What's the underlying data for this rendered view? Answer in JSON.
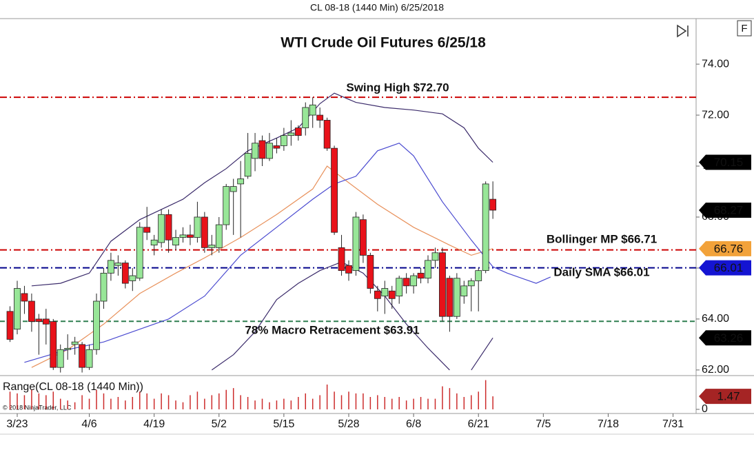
{
  "chart_data": {
    "type": "candlestick",
    "caption": "CL 08-18 (1440 Min)  6/25/2018",
    "title": "WTI Crude Oil Futures 6/25/18",
    "corner_button": "F",
    "copyright": "© 2018 NinjaTrader, LLC",
    "up_color": "#98e698",
    "down_color": "#e8121a",
    "x": [
      -1,
      0,
      1,
      2,
      3,
      4,
      5,
      6,
      7,
      8,
      9,
      10,
      11,
      12,
      13,
      14,
      15,
      16,
      17,
      18,
      19,
      20,
      21,
      22,
      23,
      24,
      25,
      26,
      27,
      28,
      29,
      30,
      31,
      32,
      33,
      34,
      35,
      36,
      37,
      38,
      39,
      40,
      41,
      42,
      43,
      44,
      45,
      46,
      47,
      48,
      49,
      50,
      51,
      52,
      53,
      54,
      55,
      56,
      57,
      58,
      59,
      60,
      61,
      62,
      63,
      64,
      65,
      66
    ],
    "open": [
      64.3,
      63.6,
      65.0,
      64.7,
      64.0,
      64.0,
      63.9,
      62.1,
      62.8,
      63.0,
      63.0,
      62.1,
      62.8,
      64.7,
      65.8,
      66.1,
      66.2,
      65.5,
      65.6,
      67.6,
      66.9,
      67.0,
      68.1,
      66.9,
      67.2,
      67.3,
      67.2,
      68.0,
      66.8,
      66.8,
      67.7,
      69.0,
      69.3,
      69.6,
      70.3,
      71.0,
      70.3,
      70.8,
      70.8,
      71.2,
      71.5,
      71.5,
      72.0,
      72.0,
      71.8,
      70.7,
      66.8,
      66.1,
      65.9,
      67.9,
      66.5,
      65.1,
      64.9,
      65.1,
      64.9,
      65.6,
      65.3,
      65.8,
      65.6,
      66.3,
      66.6,
      65.6,
      64.1,
      64.9,
      65.3,
      65.5,
      65.9,
      68.7
    ],
    "high": [
      64.5,
      65.5,
      65.3,
      65.0,
      64.2,
      64.4,
      64.0,
      63.0,
      63.4,
      63.3,
      63.1,
      63.0,
      65.0,
      66.0,
      66.6,
      66.5,
      66.3,
      66.0,
      67.8,
      68.4,
      67.3,
      68.3,
      68.3,
      67.5,
      67.6,
      67.7,
      68.6,
      68.2,
      67.3,
      68.0,
      69.3,
      69.5,
      70.2,
      71.3,
      71.3,
      71.2,
      71.3,
      71.1,
      71.5,
      71.8,
      71.6,
      72.5,
      72.7,
      72.3,
      71.9,
      70.8,
      67.3,
      66.3,
      68.2,
      68.1,
      66.6,
      65.3,
      65.5,
      65.3,
      65.7,
      65.8,
      65.8,
      66.0,
      66.5,
      66.8,
      66.8,
      65.7,
      65.8,
      65.5,
      65.6,
      66.0,
      69.4,
      69.4
    ],
    "low": [
      63.1,
      63.4,
      64.2,
      63.5,
      62.6,
      63.0,
      62.0,
      61.9,
      62.4,
      62.6,
      61.9,
      62.0,
      62.6,
      64.4,
      65.5,
      65.7,
      65.2,
      65.1,
      65.5,
      67.1,
      66.5,
      66.8,
      66.6,
      66.7,
      67.0,
      66.9,
      67.0,
      66.6,
      66.5,
      66.6,
      67.5,
      67.3,
      67.2,
      69.5,
      69.8,
      70.0,
      70.2,
      70.5,
      70.6,
      70.8,
      71.0,
      71.2,
      71.5,
      71.5,
      70.6,
      67.3,
      65.7,
      65.5,
      65.7,
      66.2,
      65.0,
      64.3,
      64.2,
      64.4,
      64.6,
      65.0,
      65.0,
      65.4,
      65.4,
      66.0,
      63.9,
      63.5,
      64.0,
      64.6,
      64.3,
      64.3,
      65.8,
      67.93
    ],
    "close": [
      63.2,
      65.2,
      64.7,
      63.9,
      63.9,
      63.8,
      62.1,
      62.8,
      62.85,
      63.1,
      62.1,
      62.8,
      64.7,
      65.8,
      66.3,
      66.2,
      65.4,
      65.7,
      67.6,
      67.4,
      67.1,
      68.1,
      67.1,
      67.2,
      67.3,
      67.2,
      68.0,
      66.8,
      66.9,
      67.7,
      69.2,
      69.2,
      69.5,
      70.5,
      70.9,
      70.3,
      70.9,
      70.7,
      71.2,
      71.3,
      71.2,
      72.3,
      72.4,
      71.8,
      70.7,
      67.4,
      65.9,
      65.8,
      68.0,
      66.5,
      65.2,
      64.8,
      65.2,
      64.8,
      65.6,
      65.3,
      65.7,
      65.6,
      66.3,
      66.6,
      64.1,
      64.1,
      65.6,
      65.3,
      65.5,
      65.9,
      69.3,
      68.27
    ],
    "xlim": [
      -2.39,
      94.2
    ],
    "ylim": [
      61.78,
      75.76
    ],
    "xticks": [
      {
        "value": 0,
        "label": "3/23"
      },
      {
        "value": 10,
        "label": "4/6"
      },
      {
        "value": 19,
        "label": "4/19"
      },
      {
        "value": 28,
        "label": "5/2"
      },
      {
        "value": 37,
        "label": "5/15"
      },
      {
        "value": 46,
        "label": "5/28"
      },
      {
        "value": 55,
        "label": "6/8"
      },
      {
        "value": 64,
        "label": "6/21"
      },
      {
        "value": 73,
        "label": "7/5"
      },
      {
        "value": 82,
        "label": "7/18"
      },
      {
        "value": 91,
        "label": "7/31"
      }
    ],
    "yticks": [
      {
        "value": 62,
        "label": "62.00"
      },
      {
        "value": 64,
        "label": "64.00"
      },
      {
        "value": 66,
        "label": "66.00"
      },
      {
        "value": 68,
        "label": "68.00"
      },
      {
        "value": 70,
        "label": "70.00"
      },
      {
        "value": 72,
        "label": "72.00"
      },
      {
        "value": 74,
        "label": "74.00"
      }
    ],
    "lines": [
      {
        "color": "#3a2a6a",
        "x": [
          2,
          6,
          10,
          13,
          17,
          20,
          23,
          26,
          29,
          32,
          36,
          39,
          42,
          44,
          47,
          51,
          55,
          59,
          62,
          64,
          66
        ],
        "values": [
          65.3,
          65.4,
          65.8,
          67.05,
          67.9,
          68.3,
          68.7,
          69.35,
          69.9,
          70.6,
          71.1,
          71.5,
          72.45,
          72.86,
          72.5,
          72.3,
          72.2,
          72.05,
          71.5,
          70.7,
          70.15
        ]
      },
      {
        "color": "#3a2a6a",
        "x": [
          27,
          30,
          33,
          36,
          39,
          42,
          45,
          48,
          51,
          54,
          57,
          60,
          61,
          63,
          66
        ],
        "values": [
          62.0,
          62.6,
          63.5,
          64.76,
          65.4,
          65.9,
          66.24,
          65.8,
          64.9,
          63.8,
          62.86,
          62.0,
          null,
          62.0,
          63.26
        ]
      },
      {
        "color": "#e8905a",
        "x": [
          2,
          7,
          12,
          17,
          22,
          26,
          31,
          36,
          41,
          43,
          46,
          50,
          55,
          60,
          63,
          66
        ],
        "values": [
          62.1,
          62.8,
          63.8,
          65.0,
          65.8,
          66.4,
          67.2,
          68.1,
          69.1,
          70.0,
          69.35,
          68.5,
          67.6,
          66.9,
          66.5,
          66.76
        ]
      },
      {
        "color": "#4a4ad0",
        "x": [
          1,
          7,
          12,
          17,
          21,
          26,
          31,
          36,
          41,
          44,
          47,
          50,
          53,
          55,
          59,
          63,
          66,
          68,
          72,
          74
        ],
        "values": [
          62.3,
          62.8,
          63.1,
          63.6,
          64.0,
          64.9,
          66.5,
          67.6,
          68.7,
          69.3,
          69.6,
          70.6,
          70.9,
          70.4,
          68.6,
          67.1,
          66.05,
          65.8,
          65.4,
          65.65
        ]
      }
    ],
    "hlines": [
      {
        "value": 72.7,
        "color": "#cc0000",
        "label": "Swing High $72.70"
      },
      {
        "value": 66.71,
        "color": "#cc0000",
        "label": "Bollinger MP $66.71"
      },
      {
        "value": 66.01,
        "color": "#00008b",
        "label": "Daily SMA $66.01"
      },
      {
        "value": 63.91,
        "color": "#2e7d4f",
        "label": "78% Macro Retracement $63.91"
      }
    ],
    "range": {
      "title": "Range(CL 08-18 (1440 Min))",
      "color": "#cc2a2a",
      "values": [
        2.0,
        1.8,
        1.6,
        2.2,
        1.8,
        1.6,
        2.0,
        1.2,
        1.0,
        0.8,
        1.6,
        1.2,
        2.2,
        1.8,
        1.2,
        1.4,
        1.0,
        1.4,
        2.0,
        1.8,
        1.2,
        1.8,
        1.6,
        1.0,
        0.8,
        1.6,
        2.0,
        1.2,
        1.6,
        1.8,
        2.2,
        2.4,
        1.6,
        1.4,
        1.0,
        1.2,
        0.8,
        1.0,
        1.2,
        1.0,
        1.4,
        1.8,
        1.2,
        1.6,
        2.8,
        2.0,
        1.6,
        2.0,
        1.8,
        1.8,
        1.4,
        1.6,
        1.4,
        1.2,
        1.4,
        1.0,
        1.2,
        1.4,
        1.2,
        1.2,
        2.6,
        2.4,
        1.8,
        1.4,
        1.6,
        2.0,
        3.3,
        1.47
      ],
      "ylim": [
        0,
        3.5
      ],
      "yticks": [
        0
      ]
    }
  }
}
